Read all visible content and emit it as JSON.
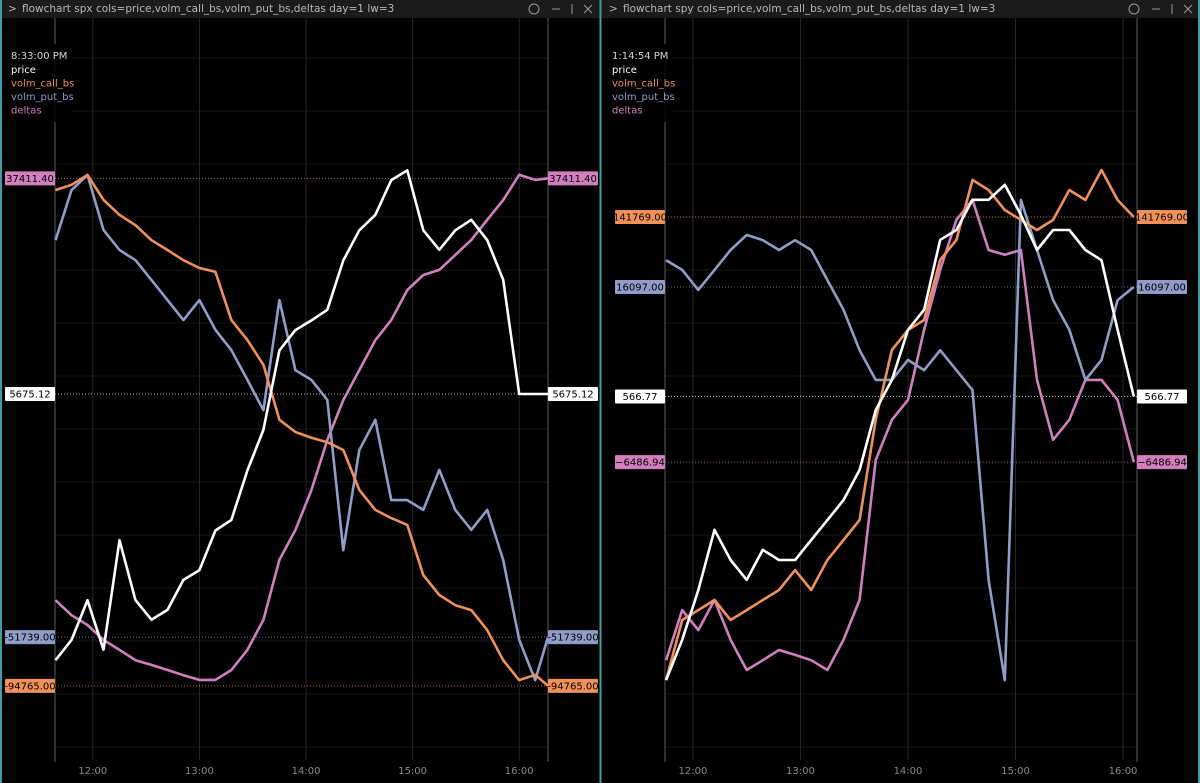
{
  "chart_data": [
    {
      "type": "line",
      "title": "flowchart spx cols=price,volm_call_bs,volm_put_bs,deltas day=1 lw=3",
      "timestamp": "8:33:00 PM",
      "xlim": [
        11.645,
        16.27
      ],
      "xticks": [
        {
          "value": 12,
          "label": "12:00"
        },
        {
          "value": 13,
          "label": "13:00"
        },
        {
          "value": 14,
          "label": "14:00"
        },
        {
          "value": 15,
          "label": "15:00"
        },
        {
          "value": 16,
          "label": "16:00"
        }
      ],
      "x": [
        11.65,
        11.8,
        11.95,
        12.1,
        12.25,
        12.4,
        12.55,
        12.7,
        12.85,
        13,
        13.15,
        13.3,
        13.45,
        13.6,
        13.75,
        13.9,
        14.05,
        14.2,
        14.35,
        14.5,
        14.65,
        14.8,
        14.95,
        15.1,
        15.25,
        15.4,
        15.55,
        15.7,
        15.85,
        16,
        16.15,
        16.27
      ],
      "series": [
        {
          "name": "price",
          "color": "#ffffff",
          "ylim": [
            5630,
            5720
          ],
          "values": [
            5642.3,
            5644.8,
            5649.7,
            5643.6,
            5657.1,
            5649.7,
            5647.3,
            5648.5,
            5652.2,
            5653.4,
            5658.3,
            5659.6,
            5665.7,
            5670.7,
            5680.5,
            5683.0,
            5684.2,
            5685.5,
            5691.6,
            5695.3,
            5697.2,
            5701.5,
            5702.7,
            5695.3,
            5692.9,
            5695.3,
            5696.6,
            5694.1,
            5689.2,
            5675.12,
            5675.12,
            5675.12
          ],
          "value_labels": [
            null,
            null,
            null,
            null,
            null,
            null,
            null,
            null,
            null,
            null,
            null,
            null,
            null,
            null,
            null,
            null,
            null,
            null,
            null,
            null,
            null,
            null,
            null,
            null,
            null,
            null,
            null,
            null,
            null,
            null,
            null,
            "5675.12"
          ]
        },
        {
          "name": "volm_call_bs",
          "color": "#f0915a",
          "ylim": [
            -110000,
            40000
          ],
          "values": [
            7100,
            8200,
            10200,
            5100,
            2000,
            -100,
            -3200,
            -5200,
            -7300,
            -8900,
            -9700,
            -19600,
            -23700,
            -28800,
            -40100,
            -42600,
            -43800,
            -44700,
            -46300,
            -54500,
            -58600,
            -60300,
            -61700,
            -72000,
            -76100,
            -78200,
            -79200,
            -83300,
            -89500,
            -93600,
            -92500,
            -94765
          ],
          "value_labels": [
            null,
            null,
            null,
            null,
            null,
            null,
            null,
            null,
            null,
            null,
            null,
            null,
            null,
            null,
            null,
            null,
            null,
            null,
            null,
            null,
            null,
            null,
            null,
            null,
            null,
            null,
            null,
            null,
            null,
            null,
            null,
            "-94765.00"
          ]
        },
        {
          "name": "volm_put_bs",
          "color": "#8f9dc8",
          "ylim": [
            -77000,
            73000
          ],
          "values": [
            29800,
            40100,
            43200,
            31900,
            27800,
            25700,
            21600,
            17500,
            13400,
            17500,
            11400,
            7200,
            1100,
            -5100,
            17500,
            3100,
            1100,
            -3000,
            -33900,
            -13300,
            -7100,
            -23600,
            -23600,
            -25600,
            -17400,
            -25600,
            -29700,
            -25600,
            -35900,
            -52300,
            -60600,
            -51739
          ],
          "value_labels": [
            null,
            null,
            null,
            null,
            null,
            null,
            null,
            null,
            null,
            null,
            null,
            null,
            null,
            null,
            null,
            null,
            null,
            null,
            null,
            null,
            null,
            null,
            null,
            null,
            null,
            null,
            null,
            null,
            null,
            null,
            null,
            "-51739.00"
          ]
        },
        {
          "name": "deltas",
          "color": "#d27fc0",
          "ylim": [
            -110000,
            75000
          ],
          "values": [
            -69500,
            -73300,
            -75800,
            -79600,
            -82100,
            -84700,
            -85900,
            -87200,
            -88500,
            -89700,
            -89700,
            -87200,
            -82100,
            -74500,
            -59300,
            -51700,
            -41600,
            -28900,
            -18800,
            -11200,
            -3600,
            1500,
            9100,
            12900,
            14200,
            18000,
            21800,
            26900,
            31900,
            38300,
            37000,
            37411.4
          ],
          "value_labels": [
            null,
            null,
            null,
            null,
            null,
            null,
            null,
            null,
            null,
            null,
            null,
            null,
            null,
            null,
            null,
            null,
            null,
            null,
            null,
            null,
            null,
            null,
            null,
            null,
            null,
            null,
            null,
            null,
            null,
            null,
            null,
            "37411.40"
          ]
        }
      ]
    },
    {
      "type": "line",
      "title": "flowchart spy cols=price,volm_call_bs,volm_put_bs,deltas day=1 lw=3",
      "timestamp": "1:14:54 PM",
      "xlim": [
        11.74,
        16.13
      ],
      "xticks": [
        {
          "value": 12,
          "label": "12:00"
        },
        {
          "value": 13,
          "label": "13:00"
        },
        {
          "value": 14,
          "label": "14:00"
        },
        {
          "value": 15,
          "label": "15:00"
        },
        {
          "value": 16,
          "label": "16:00"
        }
      ],
      "x": [
        11.75,
        11.9,
        12.05,
        12.2,
        12.35,
        12.5,
        12.65,
        12.8,
        12.95,
        13.1,
        13.25,
        13.4,
        13.55,
        13.7,
        13.85,
        14,
        14.15,
        14.3,
        14.45,
        14.6,
        14.75,
        14.9,
        15.05,
        15.2,
        15.35,
        15.5,
        15.65,
        15.8,
        15.95,
        16.1
      ],
      "series": [
        {
          "name": "price",
          "color": "#ffffff",
          "ylim": [
            559.3,
            574.3
          ],
          "values": [
            560.94,
            561.77,
            562.79,
            564.03,
            563.41,
            563.0,
            563.62,
            563.41,
            563.41,
            563.82,
            564.23,
            564.64,
            565.26,
            566.49,
            567.11,
            568.14,
            568.55,
            569.99,
            570.19,
            570.81,
            570.81,
            571.12,
            570.5,
            569.78,
            570.19,
            570.19,
            569.78,
            569.57,
            568.14,
            566.77
          ],
          "value_labels": [
            null,
            null,
            null,
            null,
            null,
            null,
            null,
            null,
            null,
            null,
            null,
            null,
            null,
            null,
            null,
            null,
            null,
            null,
            null,
            null,
            null,
            null,
            null,
            null,
            null,
            null,
            null,
            null,
            null,
            "566.77"
          ]
        },
        {
          "name": "volm_call_bs",
          "color": "#f0915a",
          "ylim": [
            -245000,
            275000
          ],
          "values": [
            -188000,
            -145300,
            -138200,
            -131000,
            -145300,
            -138200,
            -131000,
            -123900,
            -109700,
            -123900,
            -102500,
            -88300,
            -74000,
            -2800,
            47100,
            61300,
            68400,
            111200,
            125400,
            168200,
            161000,
            146800,
            139700,
            132500,
            139700,
            161000,
            153900,
            175300,
            153900,
            141769
          ],
          "value_labels": [
            null,
            null,
            null,
            null,
            null,
            null,
            null,
            null,
            null,
            null,
            null,
            null,
            null,
            null,
            null,
            null,
            null,
            null,
            null,
            null,
            null,
            null,
            null,
            null,
            null,
            null,
            null,
            null,
            null,
            "141769.00"
          ]
        },
        {
          "name": "volm_put_bs",
          "color": "#8f9dc8",
          "ylim": [
            -81100,
            68900
          ],
          "values": [
            21600,
            19600,
            15500,
            19600,
            23700,
            26800,
            25700,
            23700,
            25700,
            23700,
            17500,
            11400,
            3100,
            -3000,
            -3000,
            1100,
            -1000,
            3100,
            -1000,
            -5100,
            -44100,
            -64700,
            34000,
            23700,
            13400,
            7300,
            -3000,
            1100,
            13400,
            16097
          ],
          "value_labels": [
            null,
            null,
            null,
            null,
            null,
            null,
            null,
            null,
            null,
            null,
            null,
            null,
            null,
            null,
            null,
            null,
            null,
            null,
            null,
            null,
            null,
            null,
            null,
            null,
            null,
            null,
            null,
            null,
            null,
            "16097.00"
          ]
        },
        {
          "name": "deltas",
          "color": "#d27fc0",
          "ylim": [
            -67700,
            82300
          ],
          "values": [
            -47200,
            -36900,
            -41000,
            -34800,
            -43000,
            -49200,
            -47200,
            -45100,
            -46100,
            -47200,
            -49200,
            -43000,
            -34800,
            -6100,
            2200,
            6300,
            20700,
            33000,
            43300,
            47400,
            37100,
            36100,
            37100,
            10400,
            -1900,
            2200,
            10400,
            10400,
            6300,
            -6486.94
          ],
          "value_labels": [
            null,
            null,
            null,
            null,
            null,
            null,
            null,
            null,
            null,
            null,
            null,
            null,
            null,
            null,
            null,
            null,
            null,
            null,
            null,
            null,
            null,
            null,
            null,
            null,
            null,
            null,
            null,
            null,
            null,
            "−6486.94"
          ]
        }
      ]
    }
  ]
}
